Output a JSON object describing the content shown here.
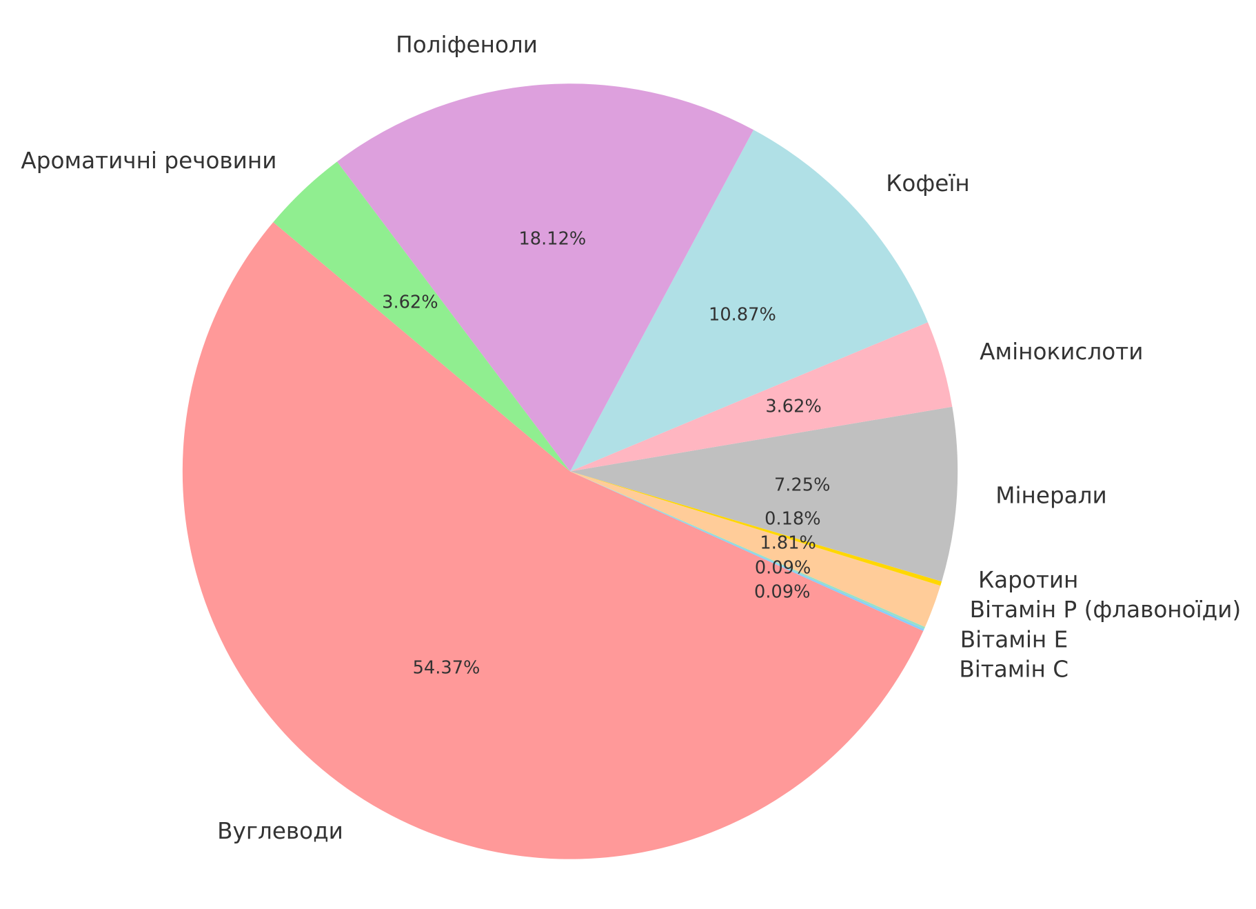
{
  "chart_data": {
    "type": "pie",
    "start_angle_deg": 140,
    "direction": "counterclockwise",
    "slices": [
      {
        "label": "Вуглеводи",
        "value": 54.37,
        "pct_label": "54.37%",
        "color": "#FF9999"
      },
      {
        "label": "Вітамін С",
        "value": 0.09,
        "pct_label": "0.09%",
        "color": "#87CEFA"
      },
      {
        "label": "Вітамін Е",
        "value": 0.09,
        "pct_label": "0.09%",
        "color": "#98E0C8"
      },
      {
        "label": "Вітамін Р (флавоноїди)",
        "value": 1.81,
        "pct_label": "1.81%",
        "color": "#FFCC99"
      },
      {
        "label": "Каротин",
        "value": 0.18,
        "pct_label": "0.18%",
        "color": "#FFD700"
      },
      {
        "label": "Мінерали",
        "value": 7.25,
        "pct_label": "7.25%",
        "color": "#C0C0C0"
      },
      {
        "label": "Амінокислоти",
        "value": 3.62,
        "pct_label": "3.62%",
        "color": "#FFB6C1"
      },
      {
        "label": "Кофеїн",
        "value": 10.87,
        "pct_label": "10.87%",
        "color": "#B0E0E6"
      },
      {
        "label": "Поліфеноли",
        "value": 18.12,
        "pct_label": "18.12%",
        "color": "#DDA0DD"
      },
      {
        "label": "Ароматичні речовини",
        "value": 3.62,
        "pct_label": "3.62%",
        "color": "#90EE90"
      }
    ]
  }
}
